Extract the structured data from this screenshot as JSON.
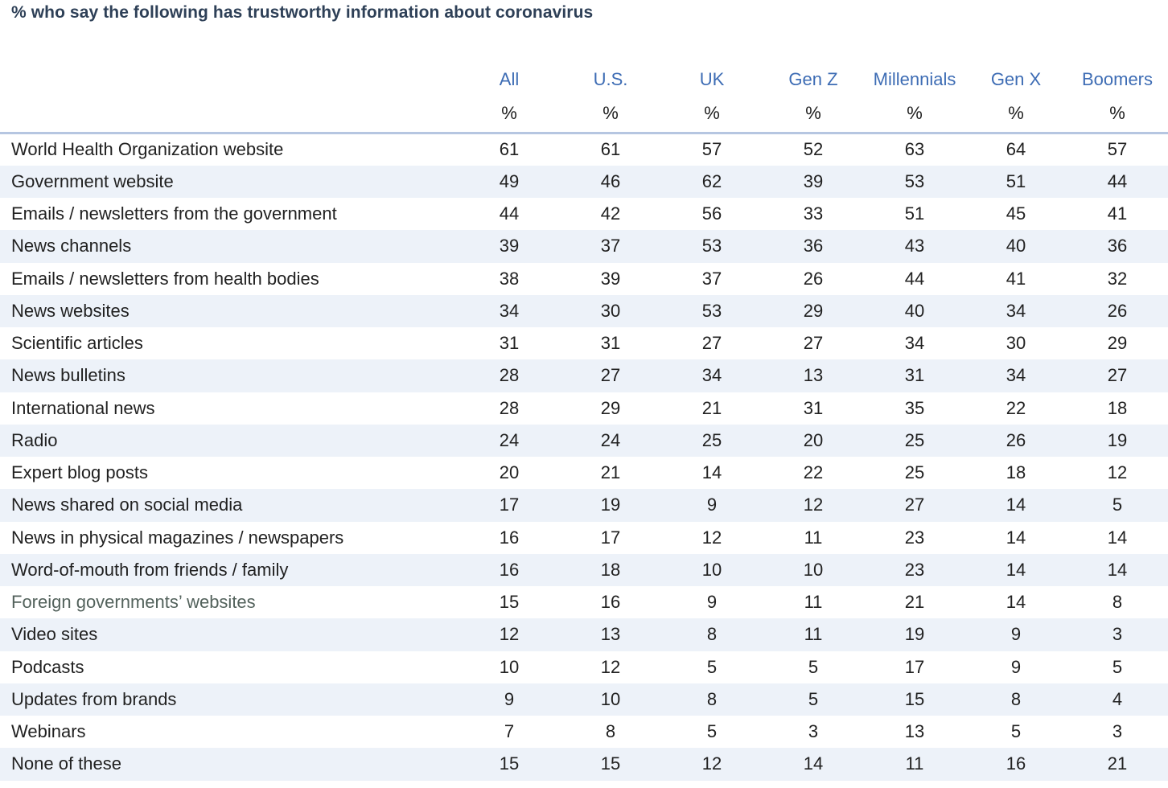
{
  "title": "% who say the following has trustworthy information about coronavirus",
  "colors": {
    "title_text": "#2e4057",
    "column_header_text": "#3d6cb4",
    "body_text": "#212121",
    "muted_row_label_text": "#53625c",
    "row_stripe": "#edf2f9",
    "header_rule": "#b6c6e1"
  },
  "percent_symbol": "%",
  "chart_data": {
    "type": "table",
    "title": "% who say the following has trustworthy information about coronavirus",
    "columns": [
      "All",
      "U.S.",
      "UK",
      "Gen Z",
      "Millennials",
      "Gen X",
      "Boomers"
    ],
    "unit": "%",
    "rows": [
      {
        "label": "World Health Organization website",
        "values": [
          61,
          61,
          57,
          52,
          63,
          64,
          57
        ]
      },
      {
        "label": "Government website",
        "values": [
          49,
          46,
          62,
          39,
          53,
          51,
          44
        ]
      },
      {
        "label": "Emails / newsletters from the government",
        "values": [
          44,
          42,
          56,
          33,
          51,
          45,
          41
        ]
      },
      {
        "label": "News channels",
        "values": [
          39,
          37,
          53,
          36,
          43,
          40,
          36
        ]
      },
      {
        "label": "Emails / newsletters from health bodies",
        "values": [
          38,
          39,
          37,
          26,
          44,
          41,
          32
        ]
      },
      {
        "label": "News websites",
        "values": [
          34,
          30,
          53,
          29,
          40,
          34,
          26
        ]
      },
      {
        "label": "Scientific articles",
        "values": [
          31,
          31,
          27,
          27,
          34,
          30,
          29
        ]
      },
      {
        "label": "News bulletins",
        "values": [
          28,
          27,
          34,
          13,
          31,
          34,
          27
        ]
      },
      {
        "label": "International news",
        "values": [
          28,
          29,
          21,
          31,
          35,
          22,
          18
        ]
      },
      {
        "label": "Radio",
        "values": [
          24,
          24,
          25,
          20,
          25,
          26,
          19
        ]
      },
      {
        "label": "Expert blog posts",
        "values": [
          20,
          21,
          14,
          22,
          25,
          18,
          12
        ]
      },
      {
        "label": "News shared on social media",
        "values": [
          17,
          19,
          9,
          12,
          27,
          14,
          5
        ]
      },
      {
        "label": "News in physical magazines / newspapers",
        "values": [
          16,
          17,
          12,
          11,
          23,
          14,
          14
        ]
      },
      {
        "label": "Word-of-mouth from friends / family",
        "values": [
          16,
          18,
          10,
          10,
          23,
          14,
          14
        ]
      },
      {
        "label": "Foreign governments’ websites",
        "values": [
          15,
          16,
          9,
          11,
          21,
          14,
          8
        ],
        "label_color": "#53625c"
      },
      {
        "label": "Video sites",
        "values": [
          12,
          13,
          8,
          11,
          19,
          9,
          3
        ]
      },
      {
        "label": "Podcasts",
        "values": [
          10,
          12,
          5,
          5,
          17,
          9,
          5
        ]
      },
      {
        "label": "Updates from brands",
        "values": [
          9,
          10,
          8,
          5,
          15,
          8,
          4
        ]
      },
      {
        "label": "Webinars",
        "values": [
          7,
          8,
          5,
          3,
          13,
          5,
          3
        ]
      },
      {
        "label": "None of these",
        "values": [
          15,
          15,
          12,
          14,
          11,
          16,
          21
        ]
      }
    ]
  }
}
